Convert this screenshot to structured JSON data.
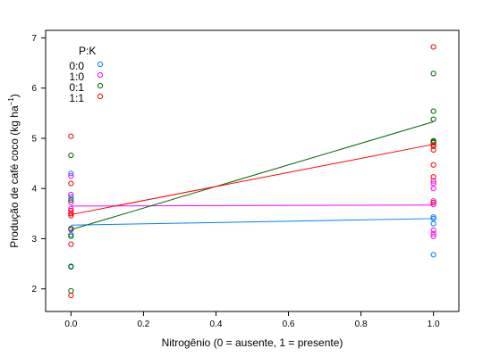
{
  "chart_data": {
    "type": "scatter",
    "xlabel": "Nitrogênio (0 = ausente, 1 = presente)",
    "ylabel_main": "Produção de café coco (kg ha",
    "ylabel_sup": "−1",
    "ylabel_close": ")",
    "xlim": [
      -0.07,
      1.07
    ],
    "ylim": [
      1.55,
      7.15
    ],
    "xticks": [
      0.0,
      0.2,
      0.4,
      0.6,
      0.8,
      1.0
    ],
    "xtick_labels": [
      "0.0",
      "0.2",
      "0.4",
      "0.6",
      "0.8",
      "1.0"
    ],
    "yticks": [
      2,
      3,
      4,
      5,
      6,
      7
    ],
    "ytick_labels": [
      "2",
      "3",
      "4",
      "5",
      "6",
      "7"
    ],
    "legend": {
      "title": "P:K",
      "placement": "top-left",
      "entries": [
        "0:0",
        "1:0",
        "0:1",
        "1:1"
      ]
    },
    "series": [
      {
        "name": "0:0",
        "color": "#0080ff",
        "x": [
          0,
          0,
          0,
          0,
          0,
          0,
          1,
          1,
          1,
          1
        ],
        "y": [
          4.3,
          3.83,
          3.08,
          2.45,
          2.44,
          3.2,
          3.4,
          3.3,
          3.43,
          2.68
        ],
        "line": [
          [
            0,
            3.27
          ],
          [
            1,
            3.4
          ]
        ]
      },
      {
        "name": "1:0",
        "color": "#ff00ff",
        "x": [
          0,
          0,
          0,
          0,
          0,
          0,
          1,
          1,
          1,
          1,
          1,
          1,
          1,
          1
        ],
        "y": [
          4.25,
          3.88,
          3.72,
          3.6,
          3.5,
          3.18,
          4.15,
          4.1,
          4.0,
          3.75,
          3.68,
          3.17,
          3.1,
          3.05
        ],
        "line": [
          [
            0,
            3.65
          ],
          [
            1,
            3.67
          ]
        ]
      },
      {
        "name": "0:1",
        "color": "#006400",
        "x": [
          0,
          0,
          0,
          0,
          0,
          0,
          1,
          1,
          1,
          1,
          1,
          1
        ],
        "y": [
          4.66,
          3.77,
          3.2,
          3.05,
          2.44,
          1.96,
          6.29,
          5.54,
          5.38,
          4.95,
          4.93,
          4.91
        ],
        "line": [
          [
            0,
            3.18
          ],
          [
            1,
            5.33
          ]
        ]
      },
      {
        "name": "1:1",
        "color": "#ff0000",
        "x": [
          0,
          0,
          0,
          0,
          0,
          0,
          0,
          1,
          1,
          1,
          1,
          1,
          1,
          1
        ],
        "y": [
          5.04,
          4.1,
          3.56,
          3.5,
          3.46,
          2.89,
          1.87,
          6.82,
          4.87,
          4.84,
          4.77,
          4.47,
          4.23,
          3.72
        ],
        "line": [
          [
            0,
            3.48
          ],
          [
            1,
            4.88
          ]
        ]
      }
    ]
  }
}
